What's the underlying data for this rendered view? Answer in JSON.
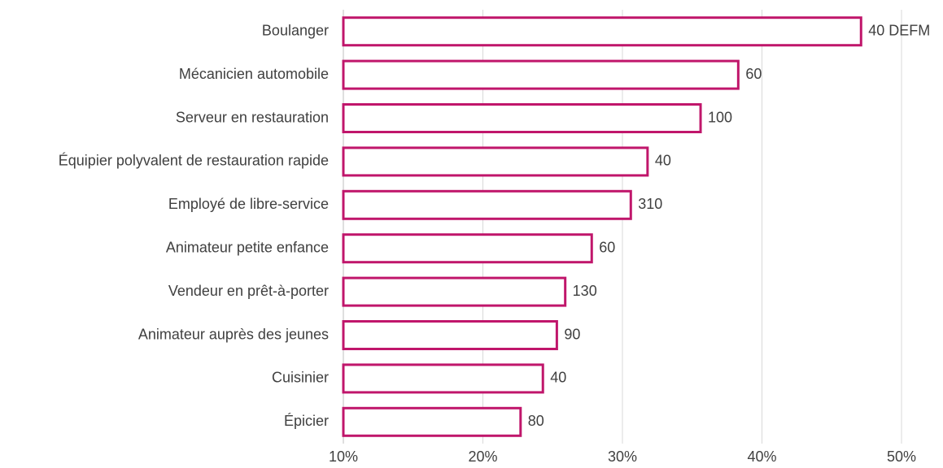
{
  "chart_data": {
    "type": "bar",
    "orientation": "horizontal",
    "categories": [
      "Boulanger",
      "Mécanicien automobile",
      "Serveur en restauration",
      "Équipier polyvalent de restauration rapide",
      "Employé de libre-service",
      "Animateur petite enfance",
      "Vendeur en prêt-à-porter",
      "Animateur auprès des jeunes",
      "Cuisinier",
      "Épicier"
    ],
    "values": [
      47.1,
      38.3,
      35.6,
      31.8,
      30.6,
      27.8,
      25.9,
      25.3,
      24.3,
      22.7
    ],
    "data_labels": [
      "40 DEFM",
      "60",
      "100",
      "40",
      "310",
      "60",
      "130",
      "90",
      "40",
      "80"
    ],
    "xlim": [
      10,
      50
    ],
    "xticks": [
      10,
      20,
      30,
      40,
      50
    ],
    "xtick_labels": [
      "10%",
      "20%",
      "30%",
      "40%",
      "50%"
    ],
    "grid": true,
    "legend": "none",
    "bar_color": "#c0166b",
    "bar_fill": "#ffffff"
  }
}
